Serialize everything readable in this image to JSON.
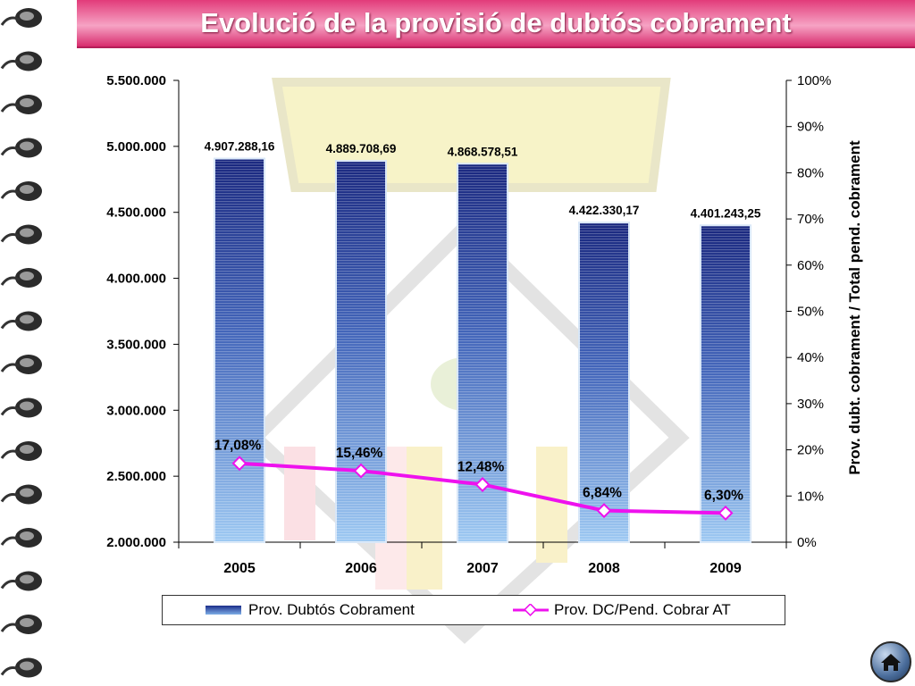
{
  "page": {
    "title": "Evolució de la provisió de dubtós cobrament"
  },
  "chart_data": {
    "type": "bar",
    "categories": [
      "2005",
      "2006",
      "2007",
      "2008",
      "2009"
    ],
    "series": [
      {
        "name": "Prov. Dubtós Cobrament",
        "type": "bar",
        "axis": "left",
        "values": [
          4907288.16,
          4889708.69,
          4868578.51,
          4422330.17,
          4401243.25
        ],
        "data_labels": [
          "4.907.288,16",
          "4.889.708,69",
          "4.868.578,51",
          "4.422.330,17",
          "4.401.243,25"
        ],
        "color": "#1f3690"
      },
      {
        "name": "Prov. DC/Pend. Cobrar AT",
        "type": "line",
        "axis": "right",
        "values": [
          17.08,
          15.46,
          12.48,
          6.84,
          6.3
        ],
        "data_labels": [
          "17,08%",
          "15,46%",
          "12,48%",
          "6,84%",
          "6,30%"
        ],
        "color": "#ee11ee"
      }
    ],
    "ylim_left": [
      2000000,
      5500000
    ],
    "yticks_left": [
      "2.000.000",
      "2.500.000",
      "3.000.000",
      "3.500.000",
      "4.000.000",
      "4.500.000",
      "5.000.000",
      "5.500.000"
    ],
    "ylim_right": [
      0,
      100
    ],
    "yticks_right": [
      "0%",
      "10%",
      "20%",
      "30%",
      "40%",
      "50%",
      "60%",
      "70%",
      "80%",
      "90%",
      "100%"
    ],
    "ylabel_right": "Prov. dubt. cobrament / Total pend. cobrament",
    "grid": false,
    "legend_position": "bottom"
  },
  "legend": {
    "bar_label": "Prov. Dubtós Cobrament",
    "line_label": "Prov. DC/Pend. Cobrar AT"
  },
  "nav": {
    "home_icon": "home-icon"
  }
}
